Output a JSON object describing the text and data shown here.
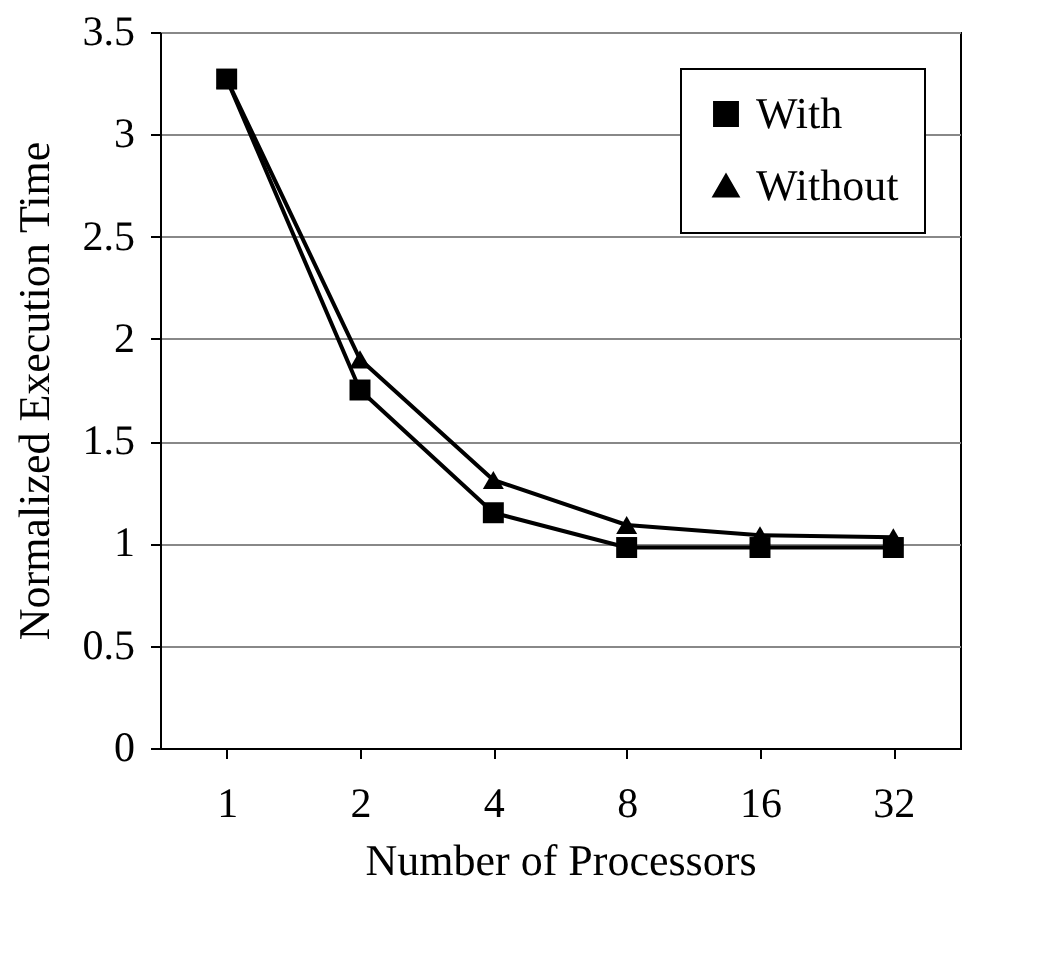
{
  "chart_data": {
    "type": "line",
    "xlabel": "Number of Processors",
    "ylabel": "Normalized Execution Time",
    "categories": [
      "1",
      "2",
      "4",
      "8",
      "16",
      "32"
    ],
    "series": [
      {
        "name": "With",
        "color": "#000000",
        "marker": "square",
        "values": [
          3.27,
          1.75,
          1.15,
          0.98,
          0.98,
          0.98
        ]
      },
      {
        "name": "Without",
        "color": "#000000",
        "marker": "triangle",
        "values": [
          3.27,
          1.9,
          1.31,
          1.09,
          1.04,
          1.03
        ]
      }
    ],
    "ylim": [
      0,
      3.5
    ],
    "yticks": [
      0,
      0.5,
      1,
      1.5,
      2,
      2.5,
      3,
      3.5
    ],
    "grid": "y",
    "legend": "top right",
    "line_style": "solid"
  }
}
